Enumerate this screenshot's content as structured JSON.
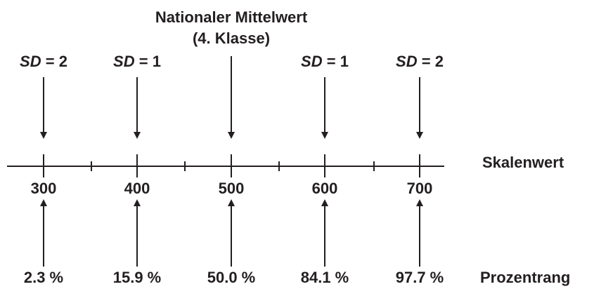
{
  "title": [
    "Nationaler Mittelwert",
    "(4. Klasse)"
  ],
  "sd_labels": [
    {
      "symbol": "SD",
      "rest": "= 2"
    },
    {
      "symbol": "SD",
      "rest": "= 1"
    },
    {
      "symbol": "SD",
      "rest": "= 1"
    },
    {
      "symbol": "SD",
      "rest": "= 2"
    }
  ],
  "scale": {
    "label": "Skalenwert",
    "values": [
      "300",
      "400",
      "500",
      "600",
      "700"
    ]
  },
  "percentiles": {
    "label": "Prozentrang",
    "values": [
      "2.3 %",
      "15.9 %",
      "50.0 %",
      "84.1 %",
      "97.7 %"
    ]
  }
}
